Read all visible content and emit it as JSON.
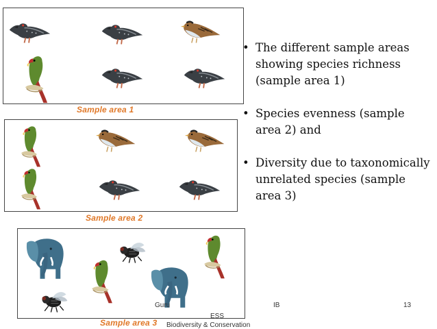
{
  "panels": [
    {
      "caption": "Sample area 1",
      "animals": [
        "pigeon",
        "pigeon",
        "sparrow",
        "parrot",
        "pigeon",
        "pigeon"
      ]
    },
    {
      "caption": "Sample area 2",
      "animals": [
        "parrot",
        "sparrow",
        "sparrow",
        "parrot",
        "pigeon",
        "pigeon"
      ]
    },
    {
      "caption": "Sample area 3",
      "animals": [
        "elephant",
        "fly",
        "parrot",
        "parrot",
        "elephant",
        "fly"
      ]
    }
  ],
  "bullets": [
    "The different sample areas showing species richness (sample area 1)",
    "Species evenness (sample area 2) and",
    "Diversity due to taxonomically unrelated species (sample area 3)"
  ],
  "footer": {
    "author": "Guru",
    "course": "ESS",
    "level": "IB",
    "topic": "Biodiversity & Conservation",
    "page": "13"
  },
  "colors": {
    "caption": "#e07828",
    "pigeon": "#3a3f44",
    "parrot_body": "#5e8a2e",
    "parrot_tail": "#a8322a",
    "elephant": "#3f6f8a"
  }
}
